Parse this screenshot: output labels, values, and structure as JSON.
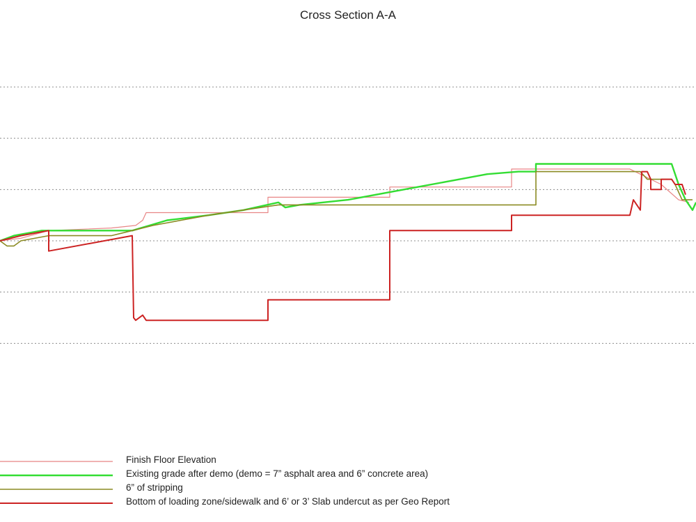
{
  "chart_data": {
    "type": "line",
    "title": "Cross Section A-A",
    "xlabel": "",
    "ylabel": "",
    "xlim": [
      0,
      100
    ],
    "ylim": [
      0,
      6
    ],
    "grid": "horizontal dotted",
    "legend_placement": "bottom-left",
    "series": [
      {
        "name": "Finish Floor Elevation",
        "color": "#e88585",
        "x": [
          0,
          3,
          7,
          16,
          19.5,
          20.5,
          21,
          38.5,
          38.5,
          56,
          56,
          73.5,
          73.5,
          90.5,
          92,
          95,
          97.5,
          99
        ],
        "y": [
          3.0,
          3.05,
          3.2,
          3.25,
          3.3,
          3.4,
          3.55,
          3.55,
          3.85,
          3.85,
          4.05,
          4.05,
          4.4,
          4.4,
          4.3,
          4.1,
          3.8,
          3.75
        ]
      },
      {
        "name": "Existing grade after demo (demo = 7” asphalt area and 6” concrete area)",
        "color": "#33dd33",
        "x": [
          0,
          2,
          4,
          6,
          19,
          24,
          30,
          35,
          40,
          41,
          43,
          50,
          60,
          70,
          74.5,
          77,
          77,
          96.5,
          97.5,
          98.5,
          99.5,
          100
        ],
        "y": [
          3.0,
          3.1,
          3.15,
          3.2,
          3.2,
          3.4,
          3.5,
          3.6,
          3.75,
          3.65,
          3.7,
          3.8,
          4.05,
          4.3,
          4.35,
          4.35,
          4.5,
          4.5,
          4.1,
          3.8,
          3.6,
          3.75
        ]
      },
      {
        "name": "6” of stripping",
        "color": "#8a8a22",
        "x": [
          0,
          1,
          2,
          3,
          7,
          16,
          19,
          22,
          26,
          30,
          35,
          40,
          40.5,
          77,
          77,
          92,
          93,
          96.5,
          97,
          98,
          99.5
        ],
        "y": [
          3.0,
          2.9,
          2.9,
          3.0,
          3.1,
          3.1,
          3.2,
          3.3,
          3.4,
          3.5,
          3.6,
          3.7,
          3.7,
          3.7,
          4.35,
          4.35,
          4.2,
          4.2,
          4.1,
          3.8,
          3.8
        ]
      },
      {
        "name": "Bottom of loading zone/sidewalk and 6’ or 3’ Slab undercut as per Geo Report",
        "color": "#cc2222",
        "x": [
          0,
          3,
          7,
          7,
          15,
          19,
          19.2,
          19.5,
          20.5,
          21,
          38.5,
          38.5,
          56,
          56,
          73.5,
          73.5,
          90.5,
          91,
          92,
          92.2,
          93,
          93.5,
          93.5,
          95,
          95,
          96.5,
          97,
          98,
          98.5
        ],
        "y": [
          3.0,
          3.1,
          3.2,
          2.8,
          3.0,
          3.1,
          1.5,
          1.45,
          1.55,
          1.45,
          1.45,
          1.85,
          1.85,
          3.2,
          3.2,
          3.5,
          3.5,
          3.8,
          3.6,
          4.35,
          4.35,
          4.2,
          4.0,
          4.0,
          4.2,
          4.2,
          4.1,
          4.1,
          3.9
        ]
      }
    ]
  }
}
